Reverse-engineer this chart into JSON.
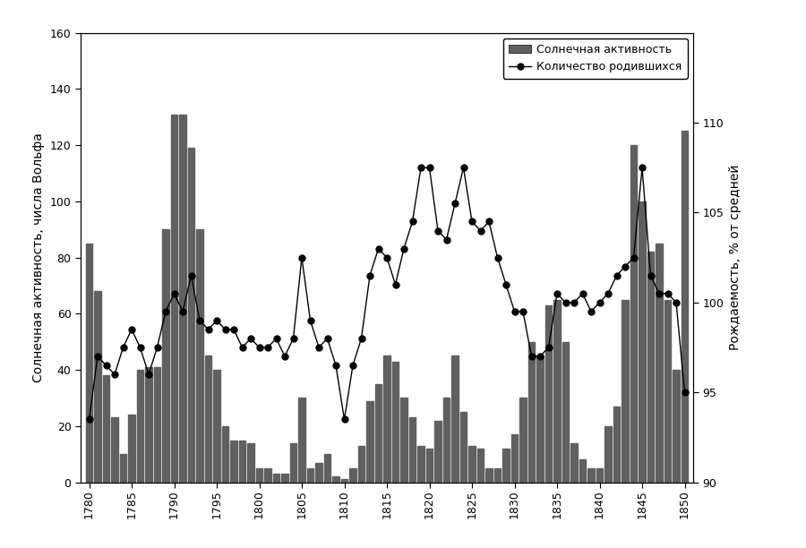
{
  "ylabel_left": "Солнечная активность, числа Вольфа",
  "ylabel_right": "Рождаемость, % от средней",
  "legend_bar": "Солнечная активность",
  "legend_line": "Количество родившихся",
  "bar_color": "#606060",
  "line_color": "#000000",
  "background_color": "#ffffff",
  "ylim_left": [
    0,
    160
  ],
  "ylim_right": [
    90,
    115
  ],
  "yticks_left": [
    0,
    20,
    40,
    60,
    80,
    100,
    120,
    140,
    160
  ],
  "yticks_right": [
    90,
    95,
    100,
    105,
    110
  ],
  "xlim": [
    1779.0,
    1851.0
  ],
  "xticks": [
    1780,
    1785,
    1790,
    1795,
    1800,
    1805,
    1810,
    1815,
    1820,
    1825,
    1830,
    1835,
    1840,
    1845,
    1850
  ],
  "years": [
    1780,
    1781,
    1782,
    1783,
    1784,
    1785,
    1786,
    1787,
    1788,
    1789,
    1790,
    1791,
    1792,
    1793,
    1794,
    1795,
    1796,
    1797,
    1798,
    1799,
    1800,
    1801,
    1802,
    1803,
    1804,
    1805,
    1806,
    1807,
    1808,
    1809,
    1810,
    1811,
    1812,
    1813,
    1814,
    1815,
    1816,
    1817,
    1818,
    1819,
    1820,
    1821,
    1822,
    1823,
    1824,
    1825,
    1826,
    1827,
    1828,
    1829,
    1830,
    1831,
    1832,
    1833,
    1834,
    1835,
    1836,
    1837,
    1838,
    1839,
    1840,
    1841,
    1842,
    1843,
    1844,
    1845,
    1846,
    1847,
    1848,
    1849,
    1850
  ],
  "sunspot": [
    85,
    68,
    38,
    23,
    10,
    24,
    40,
    41,
    41,
    90,
    131,
    131,
    119,
    90,
    45,
    40,
    20,
    15,
    15,
    14,
    5,
    5,
    3,
    3,
    14,
    30,
    5,
    7,
    10,
    2,
    1,
    5,
    13,
    29,
    35,
    45,
    43,
    30,
    23,
    13,
    12,
    22,
    30,
    45,
    25,
    13,
    12,
    5,
    5,
    12,
    17,
    30,
    50,
    45,
    63,
    65,
    50,
    14,
    8,
    5,
    5,
    20,
    27,
    65,
    120,
    100,
    82,
    85,
    65,
    40,
    125
  ],
  "birth_rate": [
    93.5,
    97.0,
    96.5,
    96.0,
    97.5,
    98.5,
    97.5,
    96.0,
    97.5,
    99.5,
    100.5,
    99.5,
    101.5,
    99.0,
    98.5,
    99.0,
    98.5,
    98.5,
    97.5,
    98.0,
    97.5,
    97.5,
    98.0,
    97.0,
    98.0,
    102.5,
    99.0,
    97.5,
    98.0,
    96.5,
    93.5,
    96.5,
    98.0,
    101.5,
    103.0,
    102.5,
    101.0,
    103.0,
    104.5,
    107.5,
    107.5,
    104.0,
    103.5,
    105.5,
    107.5,
    104.5,
    104.0,
    104.5,
    102.5,
    101.0,
    99.5,
    99.5,
    97.0,
    97.0,
    97.5,
    100.5,
    100.0,
    100.0,
    100.5,
    99.5,
    100.0,
    100.5,
    101.5,
    102.0,
    102.5,
    107.5,
    101.5,
    100.5,
    100.5,
    100.0,
    95.0
  ]
}
